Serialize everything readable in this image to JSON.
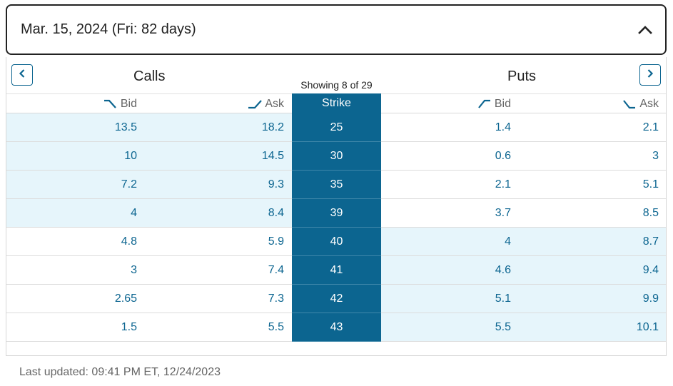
{
  "expiry": {
    "label": "Mar. 15, 2024 (Fri: 82 days)"
  },
  "chain": {
    "calls_title": "Calls",
    "puts_title": "Puts",
    "showing": "Showing  8 of 29",
    "columns": {
      "call_bid": "Bid",
      "call_ask": "Ask",
      "strike": "Strike",
      "put_bid": "Bid",
      "put_ask": "Ask"
    },
    "rows": [
      {
        "call_bid": "13.5",
        "call_ask": "18.2",
        "strike": "25",
        "put_bid": "1.4",
        "put_ask": "2.1",
        "call_itm": true,
        "put_itm": false
      },
      {
        "call_bid": "10",
        "call_ask": "14.5",
        "strike": "30",
        "put_bid": "0.6",
        "put_ask": "3",
        "call_itm": true,
        "put_itm": false
      },
      {
        "call_bid": "7.2",
        "call_ask": "9.3",
        "strike": "35",
        "put_bid": "2.1",
        "put_ask": "5.1",
        "call_itm": true,
        "put_itm": false
      },
      {
        "call_bid": "4",
        "call_ask": "8.4",
        "strike": "39",
        "put_bid": "3.7",
        "put_ask": "8.5",
        "call_itm": true,
        "put_itm": false
      },
      {
        "call_bid": "4.8",
        "call_ask": "5.9",
        "strike": "40",
        "put_bid": "4",
        "put_ask": "8.7",
        "call_itm": false,
        "put_itm": true
      },
      {
        "call_bid": "3",
        "call_ask": "7.4",
        "strike": "41",
        "put_bid": "4.6",
        "put_ask": "9.4",
        "call_itm": false,
        "put_itm": true
      },
      {
        "call_bid": "2.65",
        "call_ask": "7.3",
        "strike": "42",
        "put_bid": "5.1",
        "put_ask": "9.9",
        "call_itm": false,
        "put_itm": true
      },
      {
        "call_bid": "1.5",
        "call_ask": "5.5",
        "strike": "43",
        "put_bid": "5.5",
        "put_ask": "10.1",
        "call_itm": false,
        "put_itm": true
      }
    ]
  },
  "footer": {
    "last_updated": "Last updated: 09:41 PM ET, 12/24/2023"
  },
  "icons": {
    "collapse": "chevron-up-icon",
    "prev": "chevron-left-icon",
    "next": "chevron-right-icon",
    "sort": "sort-trend-icon"
  },
  "colors": {
    "accent": "#0c6590",
    "in_the_money": "#e6f5fb",
    "border": "#222222"
  }
}
